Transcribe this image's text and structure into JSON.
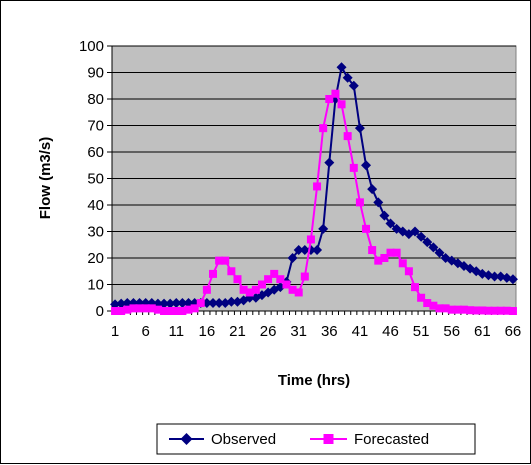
{
  "chart_data": {
    "type": "line",
    "title": "",
    "xlabel": "Time (hrs)",
    "ylabel": "Flow (m3/s)",
    "x": [
      1,
      2,
      3,
      4,
      5,
      6,
      7,
      8,
      9,
      10,
      11,
      12,
      13,
      14,
      15,
      16,
      17,
      18,
      19,
      20,
      21,
      22,
      23,
      24,
      25,
      26,
      27,
      28,
      29,
      30,
      31,
      32,
      33,
      34,
      35,
      36,
      37,
      38,
      39,
      40,
      41,
      42,
      43,
      44,
      45,
      46,
      47,
      48,
      49,
      50,
      51,
      52,
      53,
      54,
      55,
      56,
      57,
      58,
      59,
      60,
      61,
      62,
      63,
      64,
      65,
      66
    ],
    "x_ticks": [
      "1",
      "6",
      "11",
      "16",
      "21",
      "26",
      "31",
      "36",
      "41",
      "46",
      "51",
      "56",
      "61",
      "66"
    ],
    "y_ticks": [
      "0",
      "10",
      "20",
      "30",
      "40",
      "50",
      "60",
      "70",
      "80",
      "90",
      "100"
    ],
    "ylim": [
      0,
      100
    ],
    "grid": true,
    "legend_position": "bottom",
    "plot_background": "#c0c0c0",
    "series": [
      {
        "name": "Observed",
        "color": "#000080",
        "marker": "diamond",
        "values": [
          2.5,
          2.8,
          3,
          3,
          3,
          3,
          3,
          2.8,
          2.8,
          2.8,
          3,
          3,
          3,
          3,
          3,
          3,
          3,
          3,
          3,
          3.5,
          3.5,
          4,
          5,
          5,
          6,
          7,
          8,
          9,
          11,
          20,
          23,
          23,
          23,
          23,
          31,
          56,
          80,
          92,
          88,
          85,
          69,
          55,
          46,
          41,
          36,
          33,
          31,
          30,
          29,
          30,
          28,
          26,
          24,
          22,
          20,
          19,
          18,
          17,
          16,
          15,
          14,
          13.5,
          13,
          13,
          12.5,
          12
        ]
      },
      {
        "name": "Forecasted",
        "color": "#ff00ff",
        "marker": "square",
        "values": [
          0,
          0,
          0.5,
          1,
          1,
          1,
          1,
          0.5,
          0,
          0,
          0,
          0,
          0.5,
          1,
          3,
          8,
          14,
          19,
          19,
          15,
          12,
          8,
          7,
          8,
          10,
          12,
          14,
          12,
          10,
          8,
          7,
          13,
          27,
          47,
          69,
          80,
          82,
          78,
          66,
          54,
          41,
          31,
          23,
          19,
          20,
          22,
          22,
          18,
          15,
          9,
          5,
          3,
          2,
          1,
          1,
          0.5,
          0.5,
          0.5,
          0.3,
          0.2,
          0.2,
          0.1,
          0.1,
          0.1,
          0.1,
          0
        ]
      }
    ]
  }
}
